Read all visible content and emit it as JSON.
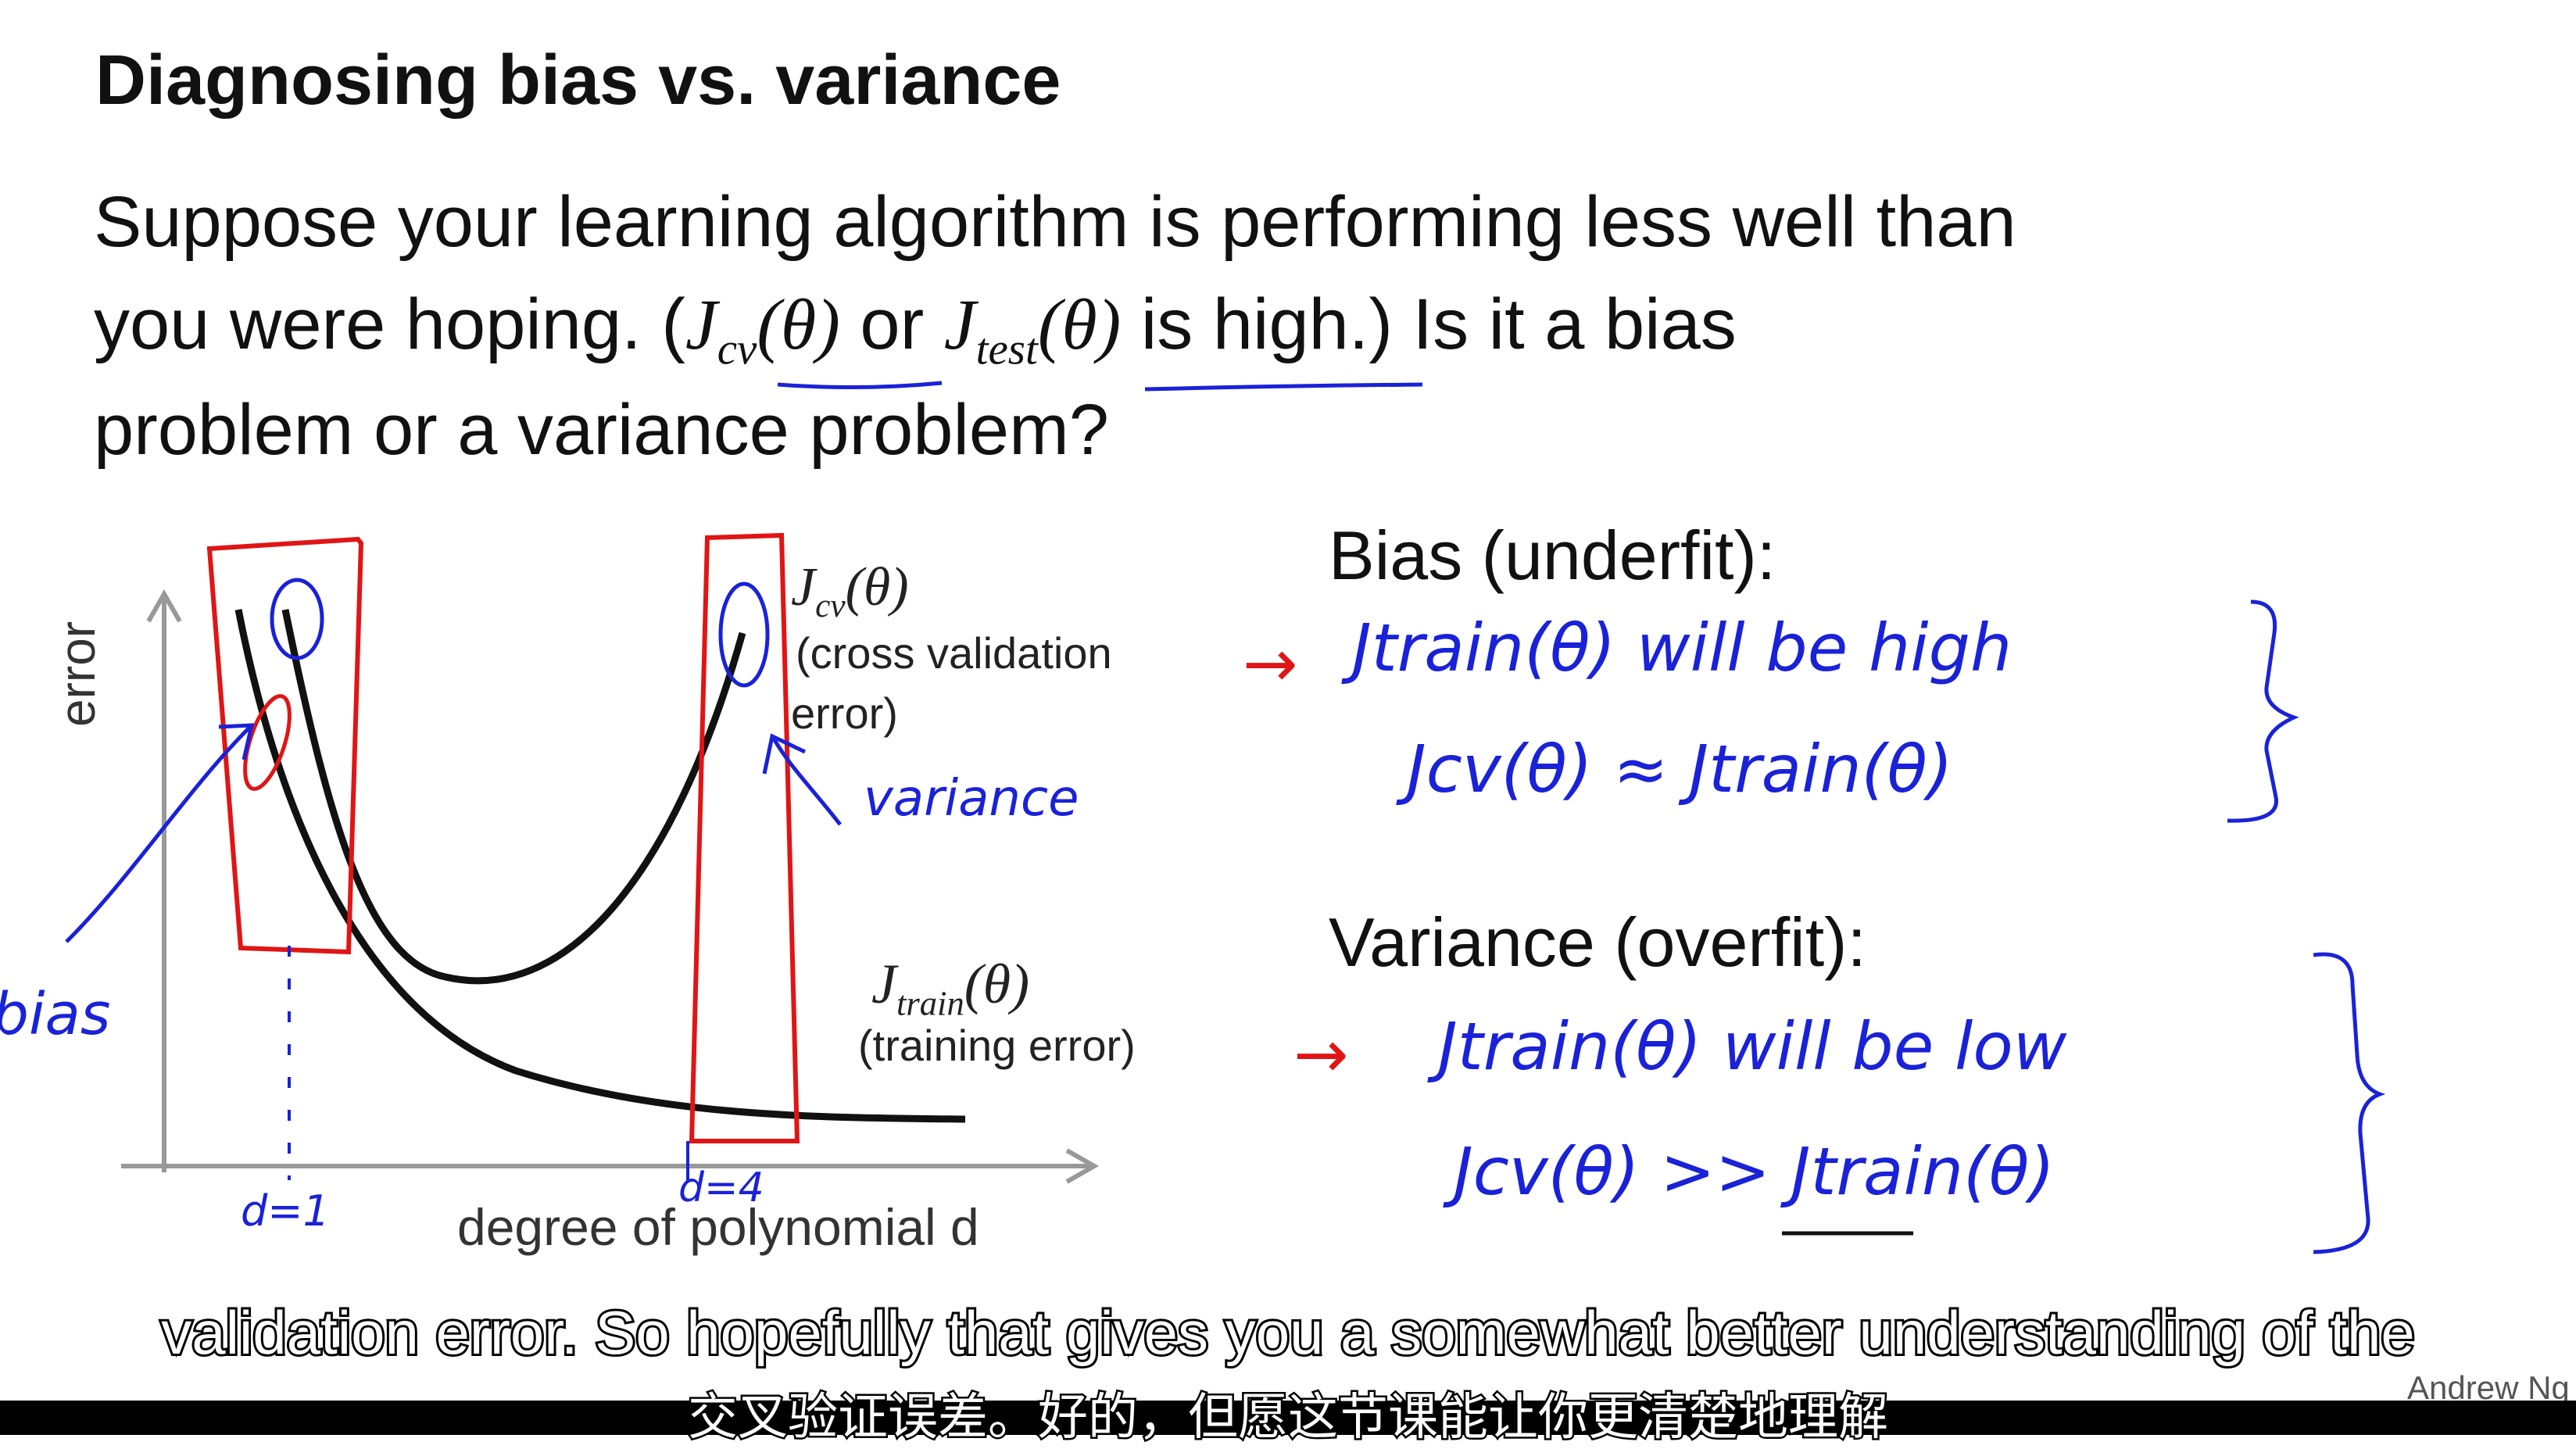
{
  "slide": {
    "title": "Diagnosing bias vs. variance",
    "intro_line1": "Suppose your learning algorithm is performing less well than",
    "intro_line2_a": "you were hoping. (",
    "intro_jcv_base": "J",
    "intro_jcv_sub": "cv",
    "intro_theta": "(θ)",
    "intro_or": " or ",
    "intro_jtest_base": "J",
    "intro_jtest_sub": "test",
    "intro_line2_b": " is high.)  Is it a bias",
    "intro_line3": "problem or a variance problem?"
  },
  "plot": {
    "ylabel": "error",
    "xlabel": "degree of polynomial d",
    "cv_label_base": "J",
    "cv_label_sub": "cv",
    "cv_label_theta": "(θ)",
    "cv_desc_line1": "(cross validation",
    "cv_desc_line2": "error)",
    "train_label_base": "J",
    "train_label_sub": "train",
    "train_label_theta": "(θ)",
    "train_desc": "(training error)"
  },
  "annotations": {
    "bias_note": "bias",
    "variance_note": "variance",
    "d1_note": "d=1",
    "d4_note": "d=4"
  },
  "bias_section": {
    "heading": "Bias (underfit):",
    "line1": "Jtrain(θ) will be high",
    "line2": "Jcv(θ) ≈ Jtrain(θ)"
  },
  "variance_section": {
    "heading": "Variance (overfit):",
    "line1": "Jtrain(θ) will be low",
    "line2": "Jcv(θ) >> Jtrain(θ)"
  },
  "subtitles": {
    "english": "validation error. So hopefully that gives you a somewhat better understanding of the",
    "chinese": "交叉验证误差。好的，但愿这节课能让你更清楚地理解"
  },
  "author": "Andrew Ng",
  "colors": {
    "ink_blue": "#1a22d8",
    "ink_red": "#e01515",
    "text": "#111111"
  }
}
